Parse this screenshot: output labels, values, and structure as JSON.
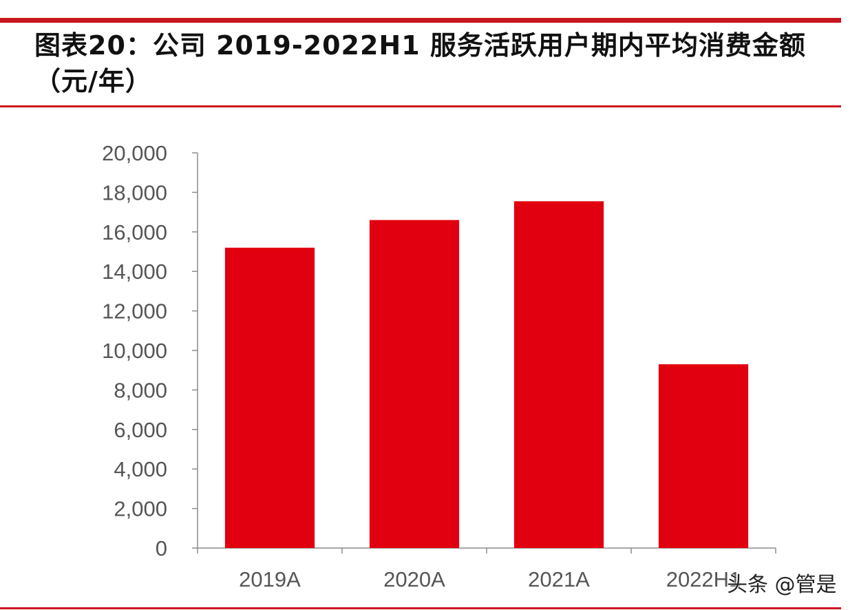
{
  "chart_data": {
    "type": "bar",
    "title": "图表20：公司 2019-2022H1 服务活跃用户期内平均消费金额（元/年）",
    "categories": [
      "2019A",
      "2020A",
      "2021A",
      "2022H1"
    ],
    "values": [
      15200,
      16600,
      17550,
      9300
    ],
    "ylim": [
      0,
      20000
    ],
    "yticks": [
      "0",
      "2,000",
      "4,000",
      "6,000",
      "8,000",
      "10,000",
      "12,000",
      "14,000",
      "16,000",
      "18,000",
      "20,000"
    ],
    "xlabel": "",
    "ylabel": "",
    "grid": false,
    "bar_color": "#e0000f"
  },
  "watermark": "头条 @管是"
}
